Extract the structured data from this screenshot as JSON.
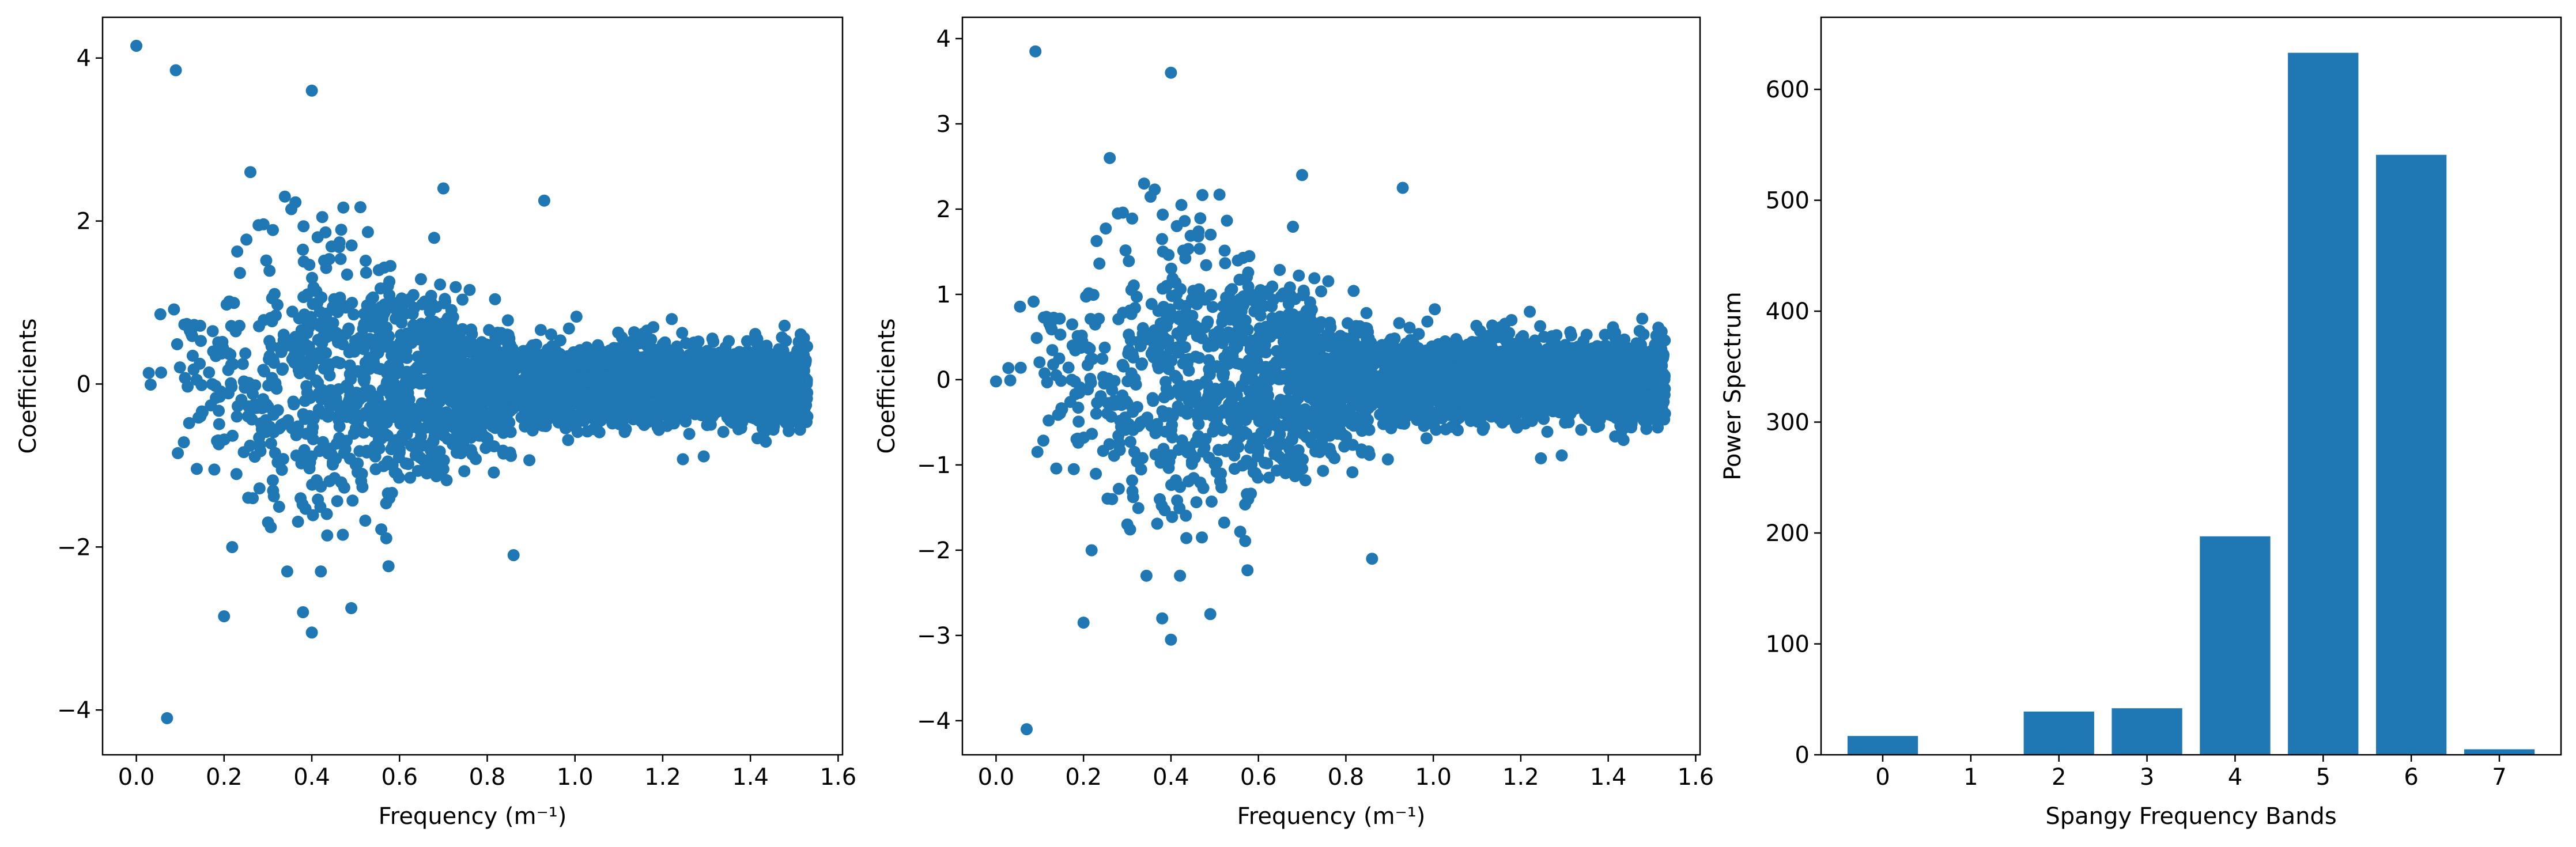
{
  "colors": {
    "marker": "#1f77b4",
    "axes": "#000000",
    "background": "#ffffff"
  },
  "chart_data": [
    {
      "type": "scatter",
      "title": "",
      "xlabel": "Frequency (m⁻¹)",
      "ylabel": "Coefficients",
      "xlim": [
        -0.077,
        1.61
      ],
      "ylim": [
        -4.55,
        4.5
      ],
      "xticks": [
        0.0,
        0.2,
        0.4,
        0.6,
        0.8,
        1.0,
        1.2,
        1.4,
        1.6
      ],
      "xtick_labels": [
        "0.0",
        "0.2",
        "0.4",
        "0.6",
        "0.8",
        "1.0",
        "1.2",
        "1.4",
        "1.6"
      ],
      "yticks": [
        -4,
        -2,
        0,
        2,
        4
      ],
      "ytick_labels": [
        "−4",
        "−2",
        "0",
        "2",
        "4"
      ],
      "x_max": 1.53,
      "n_points": 3600,
      "notable_points": [
        {
          "x": 0.0,
          "y": 4.15
        },
        {
          "x": 0.09,
          "y": 3.85
        },
        {
          "x": 0.4,
          "y": 3.6
        },
        {
          "x": 0.07,
          "y": -4.1
        },
        {
          "x": 0.2,
          "y": -2.85
        },
        {
          "x": 0.4,
          "y": -3.05
        },
        {
          "x": 0.38,
          "y": -2.8
        },
        {
          "x": 0.49,
          "y": -2.75
        },
        {
          "x": 0.93,
          "y": 2.25
        },
        {
          "x": 0.86,
          "y": -2.1
        },
        {
          "x": 0.7,
          "y": 2.4
        },
        {
          "x": 0.26,
          "y": 2.6
        }
      ]
    },
    {
      "type": "scatter",
      "title": "",
      "xlabel": "Frequency (m⁻¹)",
      "ylabel": "Coefficients",
      "xlim": [
        -0.077,
        1.61
      ],
      "ylim": [
        -4.4,
        4.25
      ],
      "xticks": [
        0.0,
        0.2,
        0.4,
        0.6,
        0.8,
        1.0,
        1.2,
        1.4,
        1.6
      ],
      "xtick_labels": [
        "0.0",
        "0.2",
        "0.4",
        "0.6",
        "0.8",
        "1.0",
        "1.2",
        "1.4",
        "1.6"
      ],
      "yticks": [
        -4,
        -3,
        -2,
        -1,
        0,
        1,
        2,
        3,
        4
      ],
      "ytick_labels": [
        "−4",
        "−3",
        "−2",
        "−1",
        "0",
        "1",
        "2",
        "3",
        "4"
      ],
      "x_max": 1.53,
      "n_points": 3600,
      "notable_points": [
        {
          "x": 0.0,
          "y": -0.02
        },
        {
          "x": 0.09,
          "y": 3.85
        },
        {
          "x": 0.4,
          "y": 3.6
        },
        {
          "x": 0.07,
          "y": -4.1
        },
        {
          "x": 0.2,
          "y": -2.85
        },
        {
          "x": 0.4,
          "y": -3.05
        },
        {
          "x": 0.38,
          "y": -2.8
        },
        {
          "x": 0.49,
          "y": -2.75
        },
        {
          "x": 0.93,
          "y": 2.25
        },
        {
          "x": 0.86,
          "y": -2.1
        },
        {
          "x": 0.7,
          "y": 2.4
        },
        {
          "x": 0.26,
          "y": 2.6
        }
      ]
    },
    {
      "type": "bar",
      "title": "",
      "xlabel": "Spangy Frequency Bands",
      "ylabel": "Power Spectrum",
      "categories": [
        "0",
        "1",
        "2",
        "3",
        "4",
        "5",
        "6",
        "7"
      ],
      "values": [
        17,
        0,
        39,
        42,
        197,
        633,
        541,
        5
      ],
      "xlim": [
        -0.7,
        7.7
      ],
      "ylim": [
        0,
        665
      ],
      "yticks": [
        0,
        100,
        200,
        300,
        400,
        500,
        600
      ],
      "ytick_labels": [
        "0",
        "100",
        "200",
        "300",
        "400",
        "500",
        "600"
      ]
    }
  ]
}
